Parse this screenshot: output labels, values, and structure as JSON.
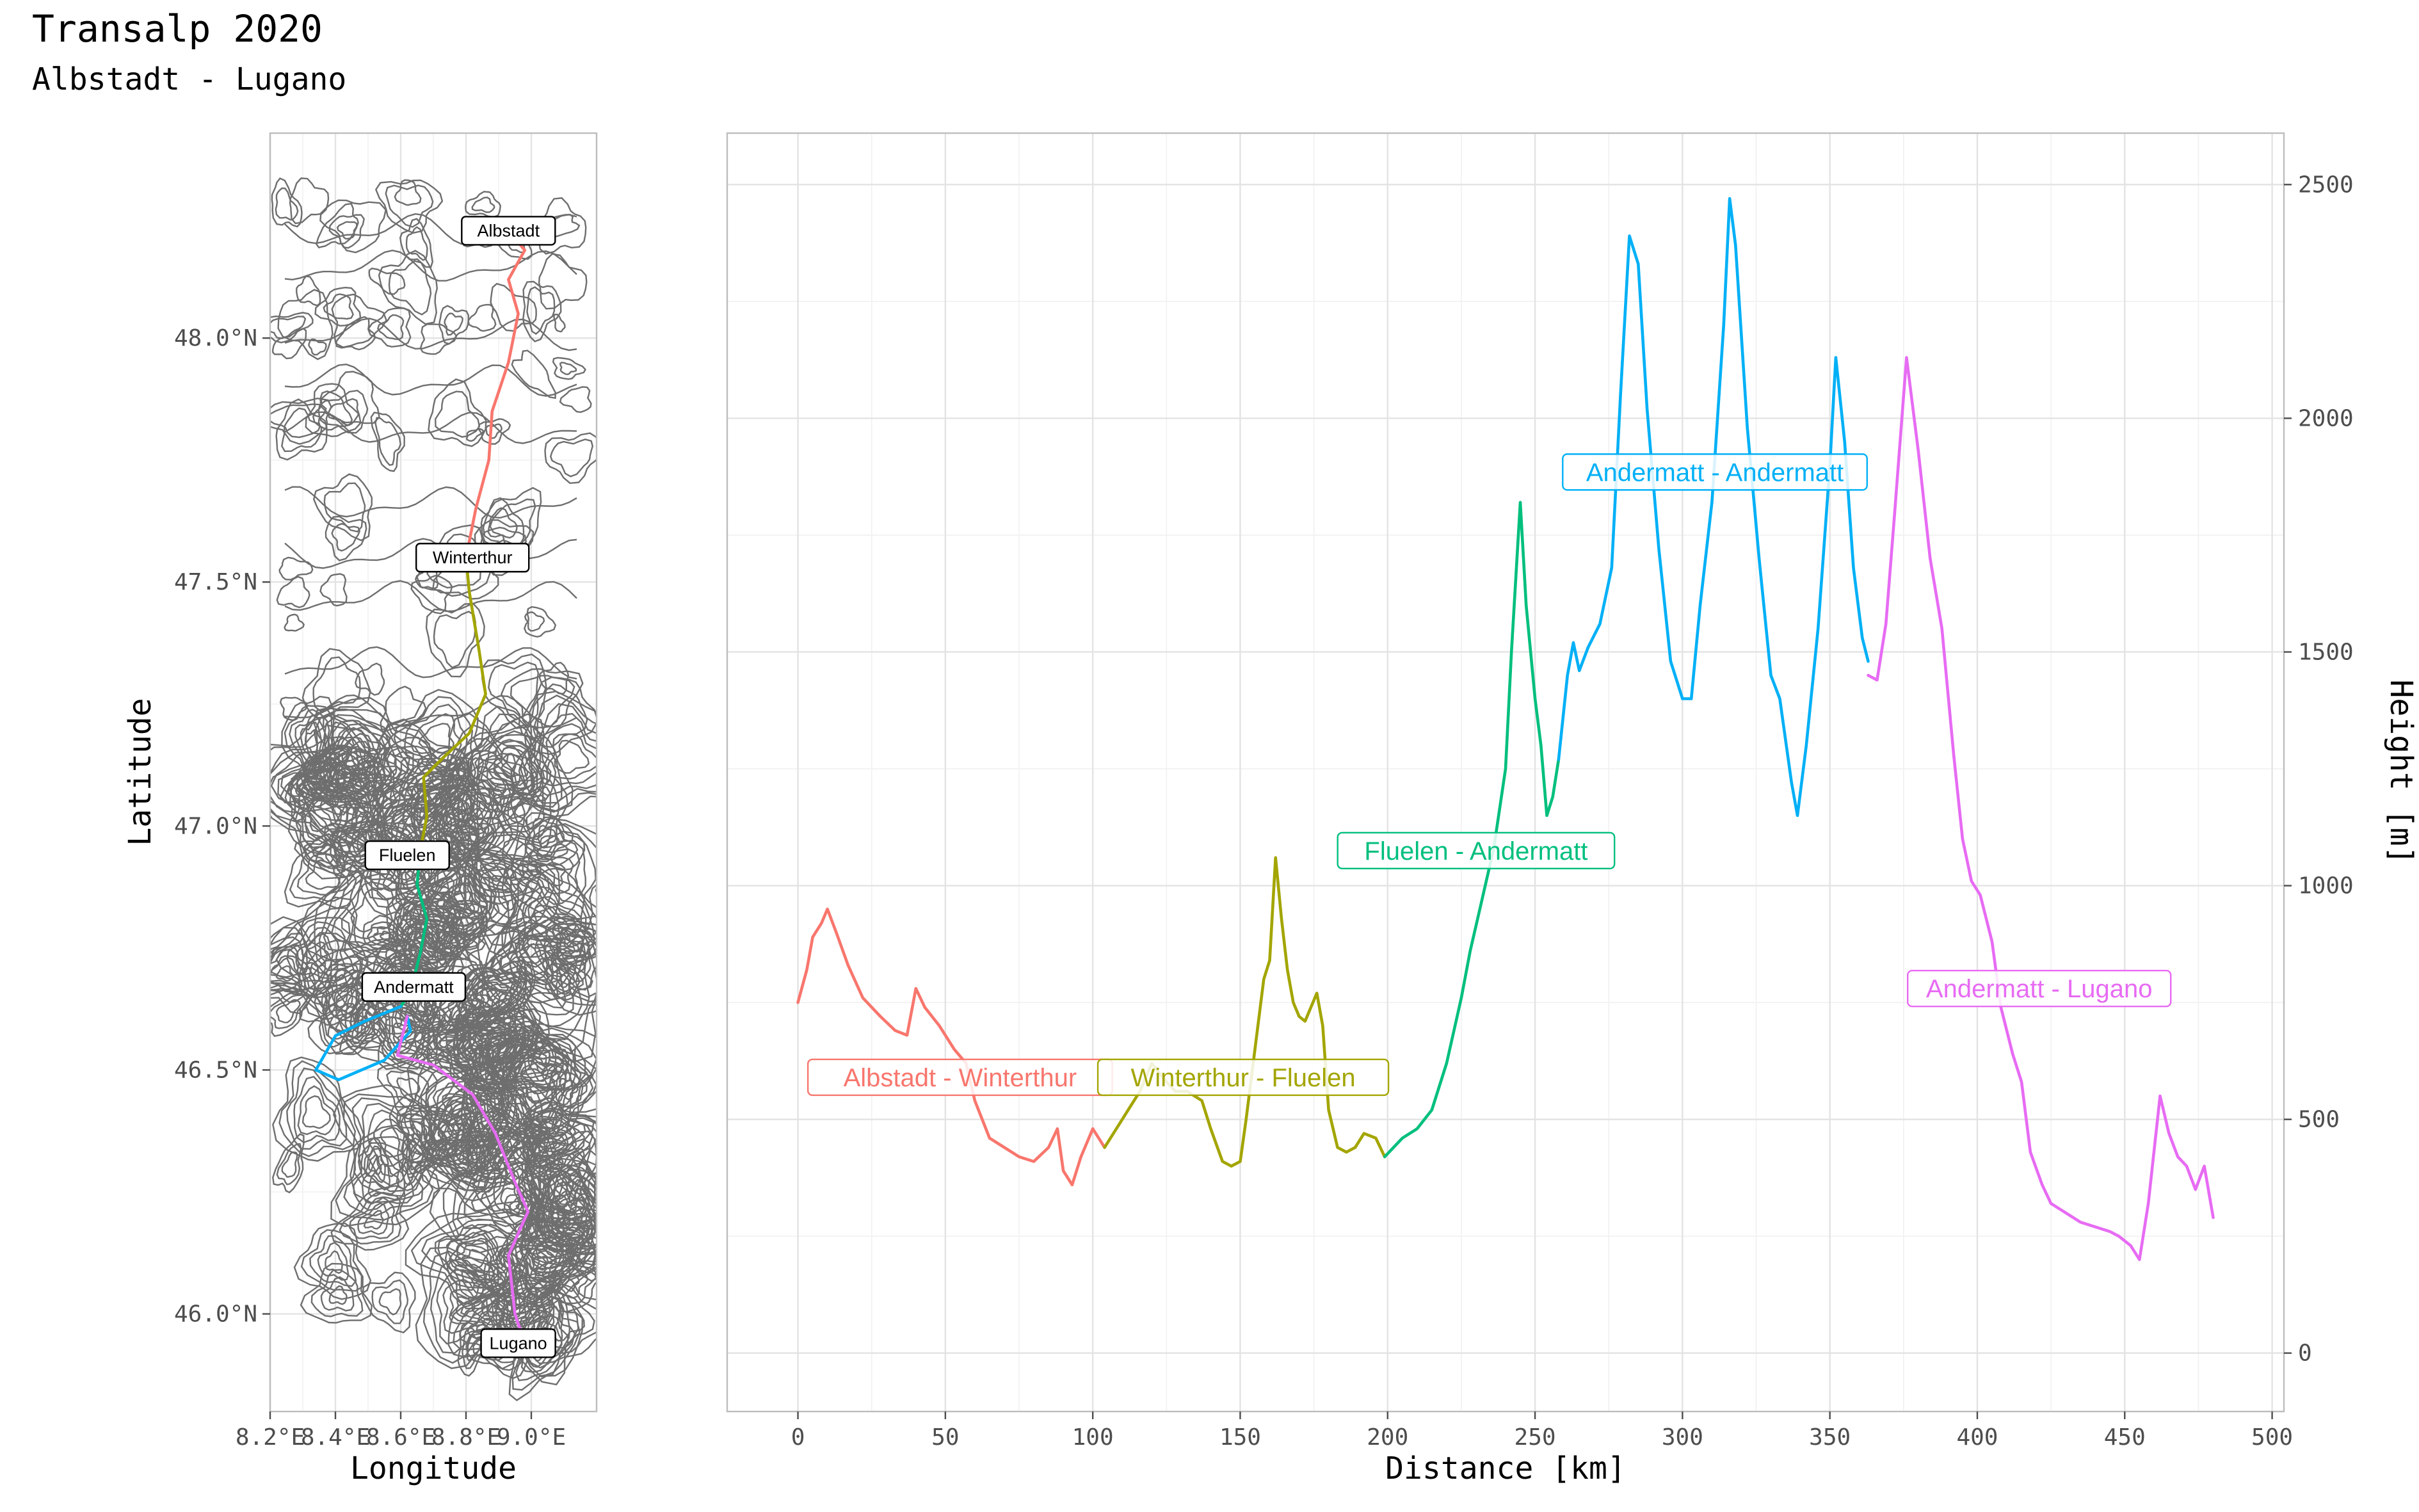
{
  "title": "Transalp 2020",
  "subtitle": "Albstadt - Lugano",
  "map": {
    "xlabel": "Longitude",
    "ylabel": "Latitude",
    "xlim": [
      8.2,
      9.2
    ],
    "ylim": [
      45.8,
      48.42
    ],
    "xticks": [
      {
        "value": 8.2,
        "label": "8.2°E"
      },
      {
        "value": 8.4,
        "label": "8.4°E"
      },
      {
        "value": 8.6,
        "label": "8.6°E"
      },
      {
        "value": 8.8,
        "label": "8.8°E"
      },
      {
        "value": 9.0,
        "label": "9.0°E"
      }
    ],
    "yticks": [
      {
        "value": 46.0,
        "label": "46.0°N"
      },
      {
        "value": 46.5,
        "label": "46.5°N"
      },
      {
        "value": 47.0,
        "label": "47.0°N"
      },
      {
        "value": 47.5,
        "label": "47.5°N"
      },
      {
        "value": 48.0,
        "label": "48.0°N"
      }
    ],
    "towns": [
      {
        "name": "Albstadt",
        "lon": 8.93,
        "lat": 48.22
      },
      {
        "name": "Winterthur",
        "lon": 8.82,
        "lat": 47.55
      },
      {
        "name": "Fluelen",
        "lon": 8.62,
        "lat": 46.94
      },
      {
        "name": "Andermatt",
        "lon": 8.64,
        "lat": 46.67
      },
      {
        "name": "Lugano",
        "lon": 8.96,
        "lat": 45.94
      }
    ],
    "route": [
      {
        "color": "#F8766D",
        "points": [
          [
            8.93,
            48.22
          ],
          [
            8.98,
            48.18
          ],
          [
            8.93,
            48.12
          ],
          [
            8.96,
            48.05
          ],
          [
            8.93,
            47.95
          ],
          [
            8.88,
            47.85
          ],
          [
            8.87,
            47.75
          ],
          [
            8.83,
            47.65
          ],
          [
            8.8,
            47.55
          ]
        ]
      },
      {
        "color": "#A3A500",
        "points": [
          [
            8.8,
            47.55
          ],
          [
            8.81,
            47.48
          ],
          [
            8.84,
            47.36
          ],
          [
            8.86,
            47.27
          ],
          [
            8.81,
            47.19
          ],
          [
            8.73,
            47.14
          ],
          [
            8.67,
            47.1
          ],
          [
            8.68,
            47.02
          ],
          [
            8.66,
            46.95
          ]
        ]
      },
      {
        "color": "#00BF7D",
        "points": [
          [
            8.66,
            46.95
          ],
          [
            8.65,
            46.88
          ],
          [
            8.68,
            46.81
          ],
          [
            8.66,
            46.74
          ],
          [
            8.63,
            46.66
          ],
          [
            8.6,
            46.63
          ]
        ]
      },
      {
        "color": "#00B0F6",
        "points": [
          [
            8.6,
            46.63
          ],
          [
            8.49,
            46.6
          ],
          [
            8.4,
            46.57
          ],
          [
            8.34,
            46.5
          ],
          [
            8.41,
            46.48
          ],
          [
            8.48,
            46.5
          ],
          [
            8.55,
            46.52
          ],
          [
            8.63,
            46.58
          ],
          [
            8.62,
            46.61
          ]
        ]
      },
      {
        "color": "#E76BF3",
        "points": [
          [
            8.62,
            46.61
          ],
          [
            8.59,
            46.53
          ],
          [
            8.7,
            46.51
          ],
          [
            8.82,
            46.45
          ],
          [
            8.89,
            46.37
          ],
          [
            8.95,
            46.27
          ],
          [
            8.99,
            46.21
          ],
          [
            8.93,
            46.12
          ],
          [
            8.95,
            46.0
          ],
          [
            8.97,
            45.96
          ]
        ]
      }
    ]
  },
  "chart_data": {
    "type": "line",
    "xlabel": "Distance [km]",
    "ylabel": "Height [m]",
    "xlim": [
      -24,
      504
    ],
    "ylim": [
      -125,
      2610
    ],
    "xticks": [
      0,
      50,
      100,
      150,
      200,
      250,
      300,
      350,
      400,
      450,
      500
    ],
    "yticks": [
      0,
      500,
      1000,
      1500,
      2000,
      2500
    ],
    "y_axis_position": "right",
    "grid": true,
    "legend": "none",
    "series": [
      {
        "name": "Albstadt - Winterthur",
        "color": "#F8766D",
        "label_at": [
          55,
          590
        ],
        "points": [
          [
            0,
            750
          ],
          [
            3,
            820
          ],
          [
            5,
            890
          ],
          [
            8,
            920
          ],
          [
            10,
            950
          ],
          [
            13,
            900
          ],
          [
            17,
            830
          ],
          [
            22,
            760
          ],
          [
            28,
            720
          ],
          [
            33,
            690
          ],
          [
            37,
            680
          ],
          [
            40,
            780
          ],
          [
            43,
            740
          ],
          [
            48,
            700
          ],
          [
            53,
            650
          ],
          [
            57,
            620
          ],
          [
            60,
            540
          ],
          [
            65,
            460
          ],
          [
            70,
            440
          ],
          [
            75,
            420
          ],
          [
            80,
            410
          ],
          [
            85,
            440
          ],
          [
            88,
            480
          ],
          [
            90,
            390
          ],
          [
            93,
            360
          ],
          [
            96,
            420
          ],
          [
            100,
            480
          ],
          [
            104,
            440
          ]
        ]
      },
      {
        "name": "Winterthur - Fluelen",
        "color": "#A3A500",
        "label_at": [
          151,
          590
        ],
        "points": [
          [
            104,
            440
          ],
          [
            108,
            480
          ],
          [
            112,
            520
          ],
          [
            116,
            560
          ],
          [
            120,
            620
          ],
          [
            125,
            580
          ],
          [
            128,
            560
          ],
          [
            132,
            560
          ],
          [
            137,
            540
          ],
          [
            140,
            480
          ],
          [
            144,
            410
          ],
          [
            147,
            400
          ],
          [
            150,
            410
          ],
          [
            152,
            500
          ],
          [
            155,
            650
          ],
          [
            158,
            800
          ],
          [
            160,
            840
          ],
          [
            162,
            1060
          ],
          [
            164,
            930
          ],
          [
            166,
            820
          ],
          [
            168,
            750
          ],
          [
            170,
            720
          ],
          [
            172,
            710
          ],
          [
            174,
            740
          ],
          [
            176,
            770
          ],
          [
            178,
            700
          ],
          [
            180,
            520
          ],
          [
            183,
            440
          ],
          [
            186,
            430
          ],
          [
            189,
            440
          ],
          [
            192,
            470
          ],
          [
            196,
            460
          ],
          [
            199,
            420
          ]
        ]
      },
      {
        "name": "Fluelen - Andermatt",
        "color": "#00BF7D",
        "label_at": [
          230,
          1075
        ],
        "points": [
          [
            199,
            420
          ],
          [
            205,
            460
          ],
          [
            210,
            480
          ],
          [
            215,
            520
          ],
          [
            220,
            620
          ],
          [
            225,
            760
          ],
          [
            228,
            860
          ],
          [
            232,
            970
          ],
          [
            236,
            1080
          ],
          [
            240,
            1250
          ],
          [
            242,
            1500
          ],
          [
            245,
            1820
          ],
          [
            247,
            1600
          ],
          [
            250,
            1400
          ],
          [
            252,
            1300
          ],
          [
            254,
            1150
          ],
          [
            256,
            1190
          ],
          [
            258,
            1270
          ]
        ]
      },
      {
        "name": "Andermatt - Andermatt",
        "color": "#00B0F6",
        "label_at": [
          311,
          1885
        ],
        "points": [
          [
            258,
            1270
          ],
          [
            261,
            1450
          ],
          [
            263,
            1520
          ],
          [
            265,
            1460
          ],
          [
            268,
            1510
          ],
          [
            272,
            1560
          ],
          [
            276,
            1680
          ],
          [
            279,
            2050
          ],
          [
            282,
            2390
          ],
          [
            285,
            2330
          ],
          [
            288,
            2020
          ],
          [
            292,
            1720
          ],
          [
            296,
            1480
          ],
          [
            300,
            1400
          ],
          [
            303,
            1400
          ],
          [
            306,
            1600
          ],
          [
            310,
            1820
          ],
          [
            314,
            2200
          ],
          [
            316,
            2470
          ],
          [
            318,
            2370
          ],
          [
            322,
            1980
          ],
          [
            326,
            1700
          ],
          [
            330,
            1450
          ],
          [
            333,
            1400
          ],
          [
            337,
            1220
          ],
          [
            339,
            1150
          ],
          [
            342,
            1300
          ],
          [
            346,
            1550
          ],
          [
            350,
            1900
          ],
          [
            352,
            2130
          ],
          [
            355,
            1950
          ],
          [
            358,
            1680
          ],
          [
            361,
            1530
          ],
          [
            363,
            1480
          ]
        ]
      },
      {
        "name": "Andermatt - Lugano",
        "color": "#E76BF3",
        "label_at": [
          421,
          780
        ],
        "points": [
          [
            363,
            1450
          ],
          [
            366,
            1440
          ],
          [
            369,
            1560
          ],
          [
            372,
            1800
          ],
          [
            376,
            2130
          ],
          [
            380,
            1930
          ],
          [
            384,
            1700
          ],
          [
            388,
            1550
          ],
          [
            392,
            1280
          ],
          [
            395,
            1100
          ],
          [
            398,
            1010
          ],
          [
            401,
            980
          ],
          [
            405,
            880
          ],
          [
            408,
            740
          ],
          [
            412,
            640
          ],
          [
            415,
            580
          ],
          [
            418,
            430
          ],
          [
            422,
            360
          ],
          [
            425,
            320
          ],
          [
            430,
            300
          ],
          [
            435,
            280
          ],
          [
            440,
            270
          ],
          [
            445,
            260
          ],
          [
            448,
            250
          ],
          [
            452,
            230
          ],
          [
            455,
            200
          ],
          [
            458,
            320
          ],
          [
            462,
            550
          ],
          [
            465,
            470
          ],
          [
            468,
            420
          ],
          [
            471,
            400
          ],
          [
            474,
            350
          ],
          [
            477,
            400
          ],
          [
            480,
            290
          ]
        ]
      }
    ]
  }
}
